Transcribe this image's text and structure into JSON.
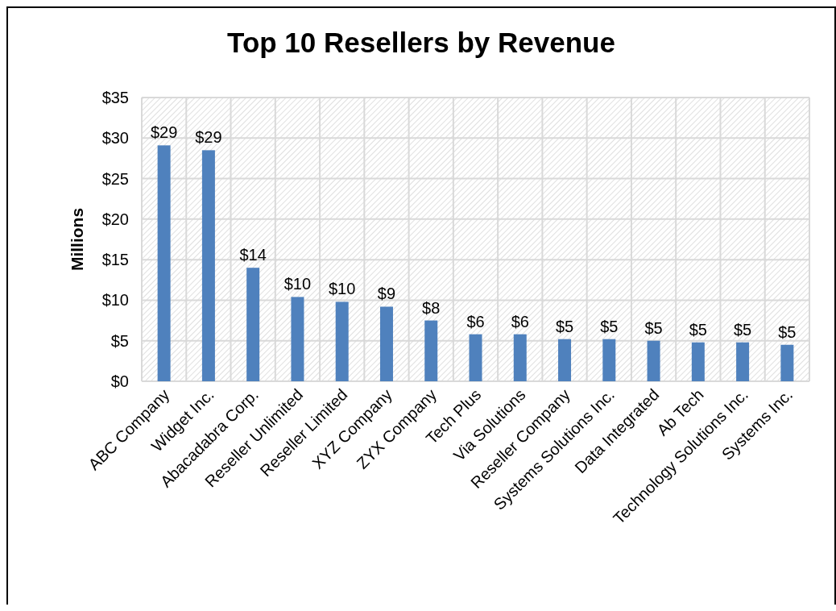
{
  "chart_data": {
    "type": "bar",
    "title": "Top 10 Resellers by Revenue",
    "ylabel": "Millions",
    "categories": [
      "ABC Company",
      "Widget Inc.",
      "Abacadabra Corp.",
      "Reseller Unlimited",
      "Reseller Limited",
      "XYZ Company",
      "ZYX Company",
      "Tech Plus",
      "Via Solutions",
      "Reseller Company",
      "Systems Solutions Inc.",
      "Data Integrated",
      "Ab Tech",
      "Technology Solutions Inc.",
      "Systems Inc."
    ],
    "values": [
      29.1,
      28.5,
      14.0,
      10.4,
      9.8,
      9.2,
      7.5,
      5.8,
      5.8,
      5.2,
      5.2,
      5.0,
      4.8,
      4.8,
      4.5
    ],
    "value_labels": [
      "$29",
      "$29",
      "$14",
      "$10",
      "$10",
      "$9",
      "$8",
      "$6",
      "$6",
      "$5",
      "$5",
      "$5",
      "$5",
      "$5",
      "$5"
    ],
    "color": "#4f81bd",
    "ylim": [
      0,
      35
    ],
    "yticks": [
      {
        "value": 0,
        "label": "$0"
      },
      {
        "value": 5,
        "label": "$5"
      },
      {
        "value": 10,
        "label": "$10"
      },
      {
        "value": 15,
        "label": "$15"
      },
      {
        "value": 20,
        "label": "$20"
      },
      {
        "value": 25,
        "label": "$25"
      },
      {
        "value": 30,
        "label": "$30"
      },
      {
        "value": 35,
        "label": "$35"
      }
    ],
    "grid": true
  }
}
